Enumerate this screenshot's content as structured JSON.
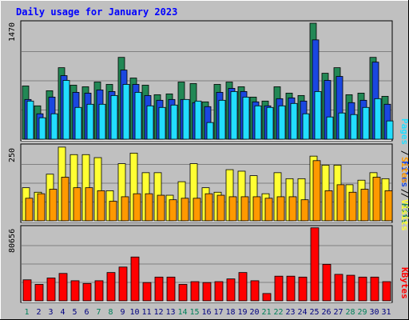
{
  "chart_data": [
    {
      "type": "bar",
      "title": "Daily usage for January 2023",
      "panel": "hits-files-pages",
      "ymax_label": "1470",
      "ylim": [
        0,
        1470
      ],
      "grid": true,
      "legend": [
        "Pages",
        "Files",
        "Hits"
      ],
      "legend_placement": "right",
      "categories": [
        "1",
        "2",
        "3",
        "4",
        "5",
        "6",
        "7",
        "8",
        "9",
        "10",
        "11",
        "12",
        "13",
        "14",
        "15",
        "16",
        "17",
        "18",
        "19",
        "20",
        "21",
        "22",
        "23",
        "24",
        "25",
        "26",
        "27",
        "28",
        "29",
        "30",
        "31"
      ],
      "weekend_days": [
        1,
        7,
        8,
        14,
        15,
        21,
        22,
        28,
        29
      ],
      "series": [
        {
          "name": "Hits",
          "color": "#228855",
          "values": [
            670,
            420,
            610,
            900,
            680,
            660,
            720,
            690,
            1030,
            770,
            680,
            560,
            570,
            720,
            700,
            470,
            690,
            720,
            660,
            530,
            480,
            660,
            580,
            550,
            1460,
            830,
            900,
            560,
            580,
            1030,
            540
          ]
        },
        {
          "name": "Files",
          "color": "#1a47e0",
          "values": [
            500,
            320,
            530,
            800,
            590,
            580,
            620,
            600,
            870,
            690,
            550,
            490,
            500,
            500,
            460,
            410,
            590,
            640,
            600,
            470,
            420,
            510,
            520,
            480,
            1250,
            740,
            790,
            460,
            490,
            970,
            440
          ]
        },
        {
          "name": "Pages",
          "color": "#22ddff",
          "values": [
            480,
            270,
            320,
            740,
            400,
            440,
            440,
            550,
            690,
            590,
            420,
            400,
            430,
            500,
            480,
            210,
            490,
            600,
            530,
            420,
            400,
            420,
            450,
            320,
            600,
            280,
            330,
            310,
            400,
            510,
            230
          ]
        }
      ]
    },
    {
      "type": "bar",
      "panel": "visits-sites",
      "ymax_label": "250",
      "ylim": [
        0,
        250
      ],
      "grid": true,
      "legend": [
        "Sites",
        "/",
        "Visits"
      ],
      "legend_placement": "right",
      "categories": [
        "1",
        "2",
        "3",
        "4",
        "5",
        "6",
        "7",
        "8",
        "9",
        "10",
        "11",
        "12",
        "13",
        "14",
        "15",
        "16",
        "17",
        "18",
        "19",
        "20",
        "21",
        "22",
        "23",
        "24",
        "25",
        "26",
        "27",
        "28",
        "29",
        "30",
        "31"
      ],
      "series": [
        {
          "name": "Visits",
          "color": "#ffff33",
          "values": [
            110,
            95,
            155,
            245,
            220,
            220,
            210,
            100,
            190,
            225,
            160,
            160,
            85,
            130,
            190,
            110,
            95,
            170,
            165,
            150,
            90,
            160,
            140,
            140,
            215,
            185,
            185,
            120,
            135,
            160,
            140
          ]
        },
        {
          "name": "Sites",
          "color": "#ff9900",
          "values": [
            75,
            90,
            105,
            145,
            110,
            110,
            100,
            65,
            80,
            90,
            90,
            85,
            70,
            75,
            75,
            90,
            85,
            80,
            80,
            80,
            75,
            80,
            80,
            70,
            200,
            100,
            120,
            95,
            105,
            145,
            100
          ]
        }
      ]
    },
    {
      "type": "bar",
      "panel": "kbytes",
      "ymax_label": "80656",
      "ylim": [
        0,
        80656
      ],
      "grid": true,
      "legend": [
        "KBytes"
      ],
      "legend_placement": "right",
      "categories": [
        "1",
        "2",
        "3",
        "4",
        "5",
        "6",
        "7",
        "8",
        "9",
        "10",
        "11",
        "12",
        "13",
        "14",
        "15",
        "16",
        "17",
        "18",
        "19",
        "20",
        "21",
        "22",
        "23",
        "24",
        "25",
        "26",
        "27",
        "28",
        "29",
        "30",
        "31"
      ],
      "series": [
        {
          "name": "KBytes",
          "color": "#ff0000",
          "values": [
            23000,
            18000,
            25000,
            30000,
            22000,
            19000,
            22000,
            31000,
            37000,
            48000,
            20000,
            26000,
            26000,
            18000,
            21000,
            20000,
            21000,
            24000,
            31000,
            22000,
            8000,
            27000,
            27000,
            26000,
            80000,
            40000,
            29000,
            28000,
            26000,
            26000,
            21000
          ]
        }
      ]
    }
  ]
}
